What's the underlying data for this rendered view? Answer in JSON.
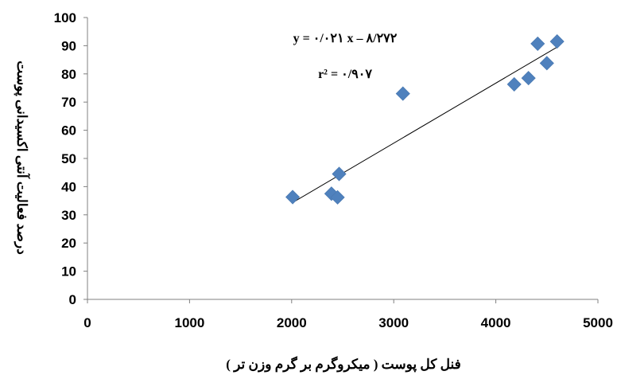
{
  "chart_data": {
    "type": "scatter",
    "xlabel": "فنل کل پوست ( میکروگرم بر گرم وزن تر )",
    "ylabel": "درصد فعالیت آنتی اکسیدانی پوست",
    "xlim": [
      0,
      5000
    ],
    "ylim": [
      0,
      100
    ],
    "x_ticks": [
      0,
      1000,
      2000,
      3000,
      4000,
      5000
    ],
    "y_ticks": [
      0,
      10,
      20,
      30,
      40,
      50,
      60,
      70,
      80,
      90,
      100
    ],
    "grid": false,
    "legend": "none",
    "marker_color": "#4f81bd",
    "trendline_color": "#000000",
    "points": [
      {
        "x": 2010,
        "y": 36.3
      },
      {
        "x": 2390,
        "y": 37.5
      },
      {
        "x": 2450,
        "y": 36.2
      },
      {
        "x": 2465,
        "y": 44.5
      },
      {
        "x": 3090,
        "y": 73
      },
      {
        "x": 4180,
        "y": 76.3
      },
      {
        "x": 4320,
        "y": 78.5
      },
      {
        "x": 4410,
        "y": 90.7
      },
      {
        "x": 4500,
        "y": 83.8
      },
      {
        "x": 4600,
        "y": 91.5
      }
    ],
    "trendline": {
      "x_start": 2010,
      "x_end": 4600,
      "equation": "y = ۰/۰۲۱ x – ۸/۲۷۲",
      "r2_label": "r² = ۰/۹۰۷"
    }
  }
}
